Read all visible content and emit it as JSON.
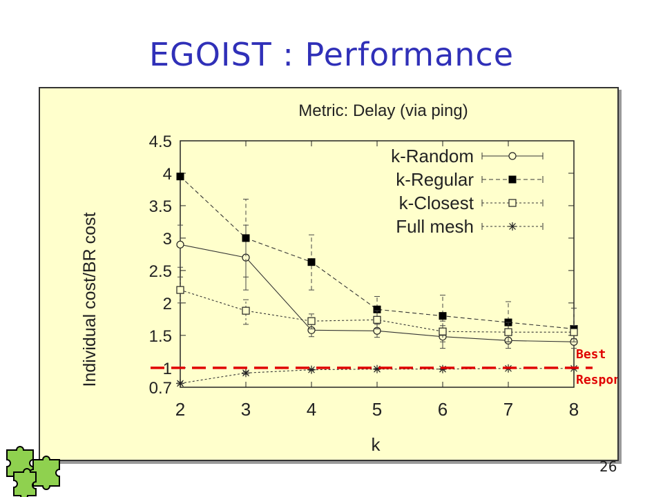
{
  "slide": {
    "title": "EGOIST : Performance",
    "page_number": "26"
  },
  "colors": {
    "title": "#3030b8",
    "panel_bg": "#ffffcc",
    "best_response_line": "#e00000",
    "best_response_text": "#e00000"
  },
  "chart_data": {
    "type": "line",
    "title": "Metric: Delay (via ping)",
    "xlabel": "k",
    "ylabel": "Individual cost/BR cost",
    "x": [
      2,
      3,
      4,
      5,
      6,
      7,
      8
    ],
    "xlim": [
      2,
      8
    ],
    "ylim": [
      0.7,
      4.5
    ],
    "xticks": [
      "2",
      "3",
      "4",
      "5",
      "6",
      "7",
      "8"
    ],
    "yticks": [
      {
        "value": 0.7,
        "label": "0.7"
      },
      {
        "value": 1,
        "label": "1"
      },
      {
        "value": 1.5,
        "label": "1.5"
      },
      {
        "value": 2,
        "label": "2"
      },
      {
        "value": 2.5,
        "label": "2.5"
      },
      {
        "value": 3,
        "label": "3"
      },
      {
        "value": 3.5,
        "label": "3.5"
      },
      {
        "value": 4,
        "label": "4"
      },
      {
        "value": 4.5,
        "label": "4.5"
      }
    ],
    "legend_position": "top-right",
    "series": [
      {
        "name": "k-Random",
        "marker": "open-circle",
        "line": "solid",
        "values": [
          2.9,
          2.7,
          1.58,
          1.57,
          1.48,
          1.42,
          1.4
        ],
        "err_low": [
          2.55,
          2.2,
          1.48,
          1.47,
          1.3,
          1.3,
          1.3
        ],
        "err_high": [
          3.2,
          3.2,
          1.68,
          1.67,
          1.65,
          1.56,
          1.5
        ]
      },
      {
        "name": "k-Regular",
        "marker": "filled-square",
        "line": "dashed",
        "values": [
          3.95,
          3.0,
          2.63,
          1.9,
          1.8,
          1.7,
          1.6
        ],
        "err_low": [
          3.9,
          2.4,
          2.2,
          1.7,
          1.5,
          1.4,
          1.4
        ],
        "err_high": [
          4.0,
          3.6,
          3.05,
          2.1,
          2.12,
          2.02,
          1.92
        ]
      },
      {
        "name": "k-Closest",
        "marker": "open-square",
        "line": "dotted",
        "values": [
          2.2,
          1.88,
          1.72,
          1.74,
          1.56,
          1.55,
          1.55
        ],
        "err_low": [
          2.0,
          1.67,
          1.6,
          1.6,
          1.4,
          1.4,
          1.45
        ],
        "err_high": [
          2.4,
          2.05,
          1.83,
          1.88,
          1.72,
          1.7,
          1.65
        ]
      },
      {
        "name": "Full mesh",
        "marker": "star",
        "line": "dotted",
        "values": [
          0.76,
          0.92,
          0.97,
          0.98,
          0.98,
          0.99,
          0.99
        ],
        "err_low": [
          0.74,
          0.9,
          0.96,
          0.97,
          0.97,
          0.98,
          0.98
        ],
        "err_high": [
          0.78,
          0.94,
          0.98,
          0.99,
          0.99,
          1.0,
          1.0
        ]
      }
    ],
    "annotation": {
      "text_line1": "Best",
      "text_line2": "Response",
      "y": 1.0
    }
  }
}
